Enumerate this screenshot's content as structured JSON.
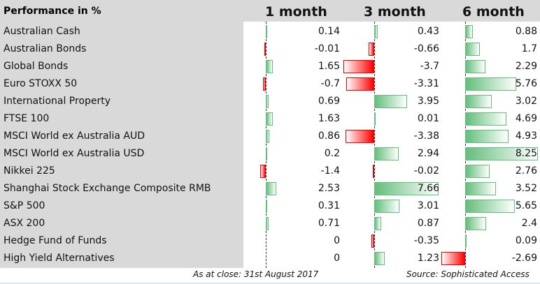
{
  "header": {
    "title": "Performance in %",
    "columns": [
      "1 month",
      "3 month",
      "6 month"
    ]
  },
  "colors": {
    "positive": "#63be7b",
    "negative": "#ff0000",
    "background": "#d9d9d9"
  },
  "rows": [
    {
      "name": "Australian Cash",
      "values": [
        0.14,
        0.43,
        0.88
      ],
      "labels": [
        "0.14",
        "0.43",
        "0.88"
      ]
    },
    {
      "name": "Australian Bonds",
      "values": [
        -0.01,
        -0.66,
        1.7
      ],
      "labels": [
        "-0.01",
        "-0.66",
        "1.7"
      ]
    },
    {
      "name": "Global Bonds",
      "values": [
        1.65,
        -3.7,
        2.29
      ],
      "labels": [
        "1.65",
        "-3.7",
        "2.29"
      ]
    },
    {
      "name": "Euro STOXX 50",
      "values": [
        -0.7,
        -3.31,
        5.76
      ],
      "labels": [
        "-0.7",
        "-3.31",
        "5.76"
      ]
    },
    {
      "name": "International Property",
      "values": [
        0.69,
        3.95,
        3.02
      ],
      "labels": [
        "0.69",
        "3.95",
        "3.02"
      ]
    },
    {
      "name": "FTSE 100",
      "values": [
        1.63,
        0.01,
        4.69
      ],
      "labels": [
        "1.63",
        "0.01",
        "4.69"
      ]
    },
    {
      "name": "MSCI World ex Australia AUD",
      "values": [
        0.86,
        -3.38,
        4.93
      ],
      "labels": [
        "0.86",
        "-3.38",
        "4.93"
      ]
    },
    {
      "name": "MSCI World ex Australia USD",
      "values": [
        0.2,
        2.94,
        8.25
      ],
      "labels": [
        "0.2",
        "2.94",
        "8.25"
      ]
    },
    {
      "name": "Nikkei 225",
      "values": [
        -1.4,
        -0.02,
        2.76
      ],
      "labels": [
        "-1.4",
        "-0.02",
        "2.76"
      ]
    },
    {
      "name": "Shanghai Stock Exchange Composite RMB",
      "values": [
        2.53,
        7.66,
        3.52
      ],
      "labels": [
        "2.53",
        "7.66",
        "3.52"
      ]
    },
    {
      "name": "S&P 500",
      "values": [
        0.31,
        3.01,
        5.65
      ],
      "labels": [
        "0.31",
        "3.01",
        "5.65"
      ]
    },
    {
      "name": "ASX 200",
      "values": [
        0.71,
        0.87,
        2.4
      ],
      "labels": [
        "0.71",
        "0.87",
        "2.4"
      ]
    },
    {
      "name": "Hedge Fund of Funds",
      "values": [
        0,
        -0.35,
        0.09
      ],
      "labels": [
        "0",
        "-0.35",
        "0.09"
      ]
    },
    {
      "name": "High Yield Alternatives",
      "values": [
        0,
        1.23,
        -2.69
      ],
      "labels": [
        "0",
        "1.23",
        "-2.69"
      ]
    }
  ],
  "footer": {
    "as_at": "As at close:  31st August 2017",
    "source": "Source:  Sophisticated Access"
  }
}
